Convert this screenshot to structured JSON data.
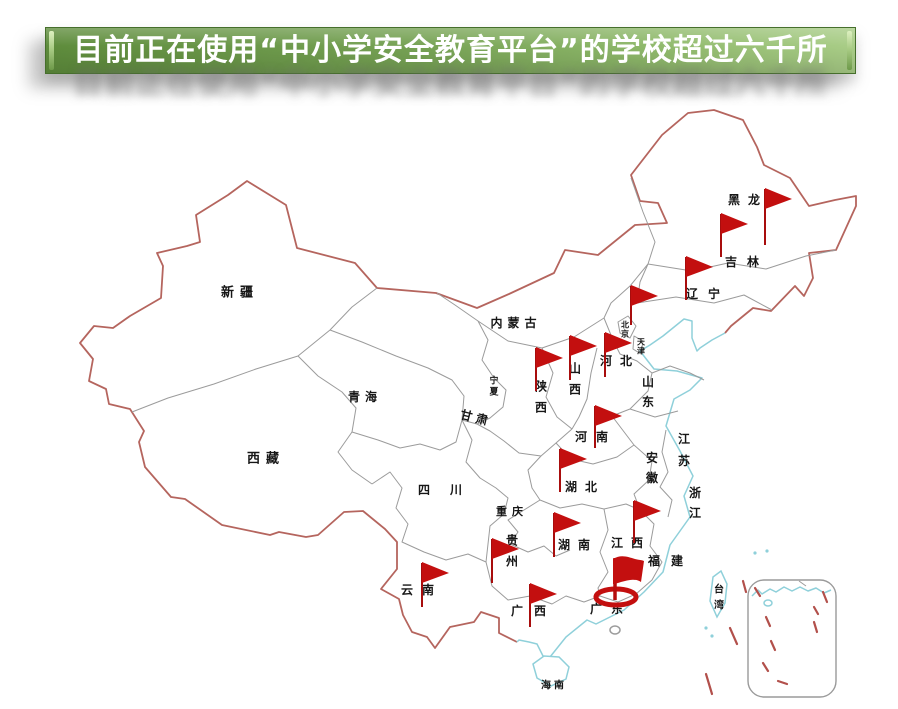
{
  "banner": {
    "text": "目前正在使用“中小学安全教育平台”的学校超过六千所"
  },
  "map": {
    "province_labels": [
      {
        "id": "xinjiang",
        "label": "新疆"
      },
      {
        "id": "xizang",
        "label": "西藏"
      },
      {
        "id": "qinghai",
        "label": "青海"
      },
      {
        "id": "gansu",
        "label": "甘肃"
      },
      {
        "id": "neimenggu",
        "label": "内蒙古"
      },
      {
        "id": "ningxia",
        "label": "宁夏"
      },
      {
        "id": "shaanxi",
        "label": "陕西"
      },
      {
        "id": "shanxi",
        "label": "山西"
      },
      {
        "id": "hebei",
        "label": "河北"
      },
      {
        "id": "beijing",
        "label": "北京"
      },
      {
        "id": "tianjin",
        "label": "天津"
      },
      {
        "id": "shandong",
        "label": "山东"
      },
      {
        "id": "henan",
        "label": "河南"
      },
      {
        "id": "jiangsu",
        "label": "江苏"
      },
      {
        "id": "anhui",
        "label": "安徽"
      },
      {
        "id": "zhejiang",
        "label": "浙江"
      },
      {
        "id": "hubei",
        "label": "湖北"
      },
      {
        "id": "sichuan",
        "label": "四川"
      },
      {
        "id": "chongqing",
        "label": "重庆"
      },
      {
        "id": "guizhou",
        "label": "贵州"
      },
      {
        "id": "hunan",
        "label": "湖南"
      },
      {
        "id": "jiangxi",
        "label": "江西"
      },
      {
        "id": "fujian",
        "label": "福建"
      },
      {
        "id": "yunnan",
        "label": "云南"
      },
      {
        "id": "guangxi",
        "label": "广西"
      },
      {
        "id": "guangdong",
        "label": "广东"
      },
      {
        "id": "hainan",
        "label": "海南"
      },
      {
        "id": "taiwan",
        "label": "台湾"
      },
      {
        "id": "heilongjiang",
        "label": "黑龙"
      },
      {
        "id": "jilin",
        "label": "吉林"
      },
      {
        "id": "liaoning",
        "label": "辽宁"
      }
    ],
    "flags": [
      {
        "id": "flag-1",
        "near": "黑龙江"
      },
      {
        "id": "flag-2",
        "near": "黑龙江"
      },
      {
        "id": "flag-3",
        "near": "吉林"
      },
      {
        "id": "flag-4",
        "near": "辽宁"
      },
      {
        "id": "flag-5",
        "near": "河北"
      },
      {
        "id": "flag-6",
        "near": "陕西"
      },
      {
        "id": "flag-7",
        "near": "山西"
      },
      {
        "id": "flag-8",
        "near": "河南"
      },
      {
        "id": "flag-9",
        "near": "湖北"
      },
      {
        "id": "flag-10",
        "near": "湖南"
      },
      {
        "id": "flag-11",
        "near": "江西"
      },
      {
        "id": "flag-12",
        "near": "贵州"
      },
      {
        "id": "flag-13",
        "near": "云南"
      },
      {
        "id": "flag-14",
        "near": "广西"
      }
    ],
    "special_flag": {
      "near": "广东",
      "style": "waving-flag-with-ring"
    },
    "colors": {
      "flag_red": "#c30f0f",
      "pole_red": "#a80d0d",
      "national_border": "#b5655e",
      "province_border": "#9b9b9b",
      "coastline": "#8fd0da",
      "banner_green_dark": "#5e8c3c",
      "banner_green_light": "#a9cd87",
      "label_black": "#161616"
    }
  }
}
